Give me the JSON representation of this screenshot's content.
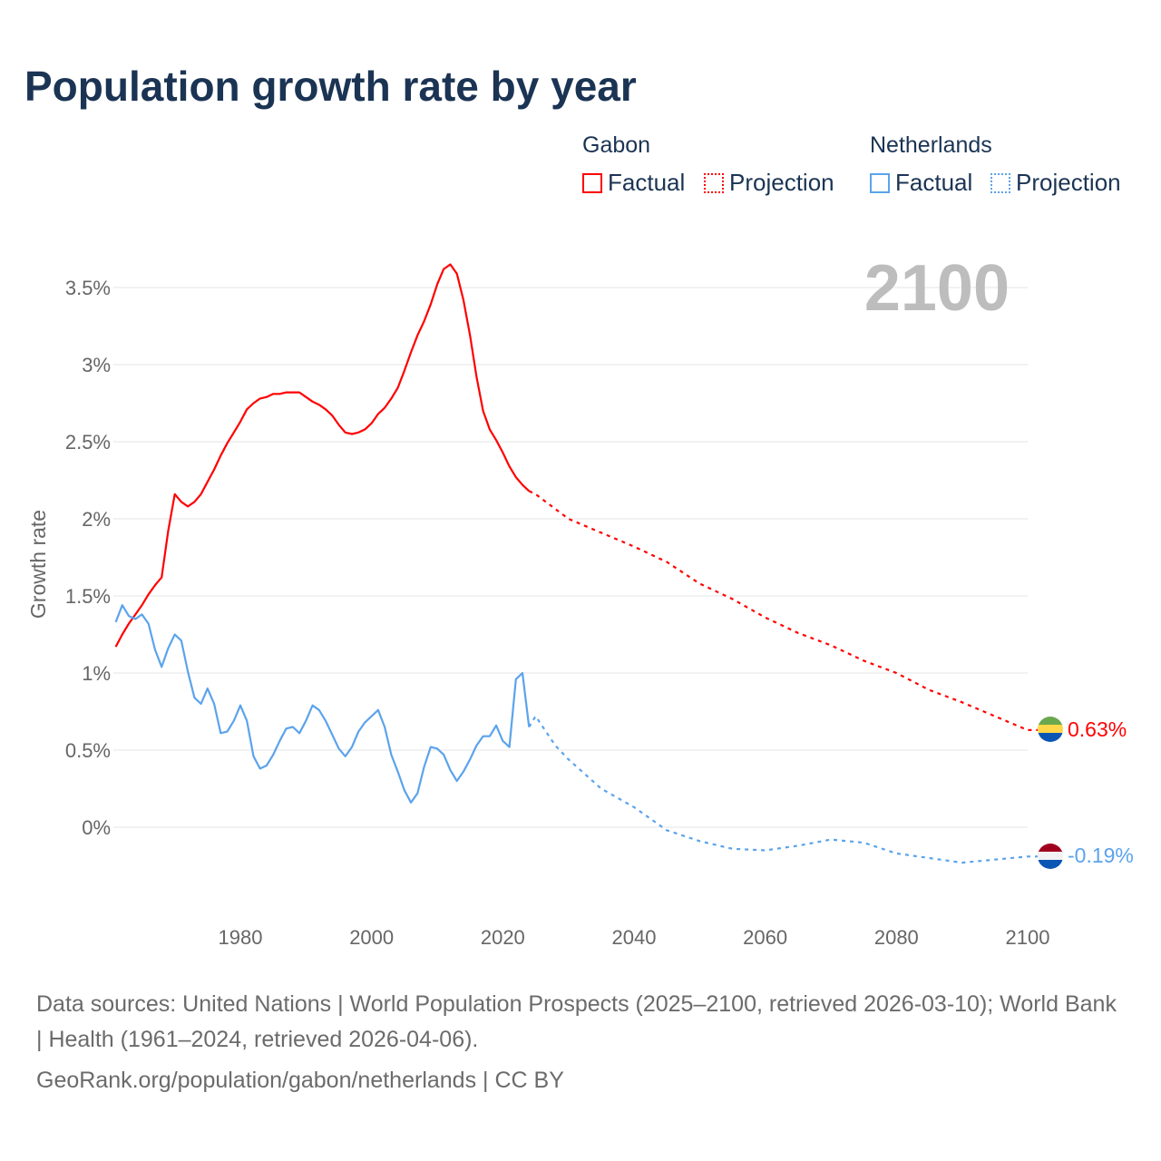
{
  "title": "Population growth rate by year",
  "legend": {
    "groups": [
      {
        "name": "Gabon",
        "factual": "Factual",
        "projection": "Projection",
        "color": "#ff0000"
      },
      {
        "name": "Netherlands",
        "factual": "Factual",
        "projection": "Projection",
        "color": "#5ba3ec"
      }
    ]
  },
  "footer": {
    "sources": "Data sources: United Nations | World Population Prospects (2025–2100, retrieved 2026-03-10); World Bank | Health (1961–2024, retrieved 2026-04-06).",
    "credit": "GeoRank.org/population/gabon/netherlands | CC BY"
  },
  "chart_data": {
    "type": "line",
    "title": "Population growth rate by year",
    "ylabel": "Growth rate",
    "xlabel": "",
    "year_label": "2100",
    "xlim": [
      1961,
      2100
    ],
    "ylim": [
      -0.5,
      3.8
    ],
    "x_ticks": [
      1980,
      2000,
      2020,
      2040,
      2060,
      2080,
      2100
    ],
    "y_ticks": [
      {
        "v": 0,
        "l": "0%"
      },
      {
        "v": 0.5,
        "l": "0.5%"
      },
      {
        "v": 1,
        "l": "1%"
      },
      {
        "v": 1.5,
        "l": "1.5%"
      },
      {
        "v": 2,
        "l": "2%"
      },
      {
        "v": 2.5,
        "l": "2.5%"
      },
      {
        "v": 3,
        "l": "3%"
      },
      {
        "v": 3.5,
        "l": "3.5%"
      }
    ],
    "grid": true,
    "series": [
      {
        "name": "Gabon",
        "color": "#ff0000",
        "end_label": "0.63%",
        "factual": {
          "start": 1961,
          "values": [
            1.17,
            1.25,
            1.32,
            1.38,
            1.44,
            1.51,
            1.57,
            1.62,
            1.92,
            2.16,
            2.11,
            2.08,
            2.11,
            2.16,
            2.24,
            2.32,
            2.41,
            2.49,
            2.56,
            2.63,
            2.71,
            2.75,
            2.78,
            2.79,
            2.81,
            2.81,
            2.82,
            2.82,
            2.82,
            2.79,
            2.76,
            2.74,
            2.71,
            2.67,
            2.61,
            2.56,
            2.55,
            2.56,
            2.58,
            2.62,
            2.68,
            2.72,
            2.78,
            2.85,
            2.96,
            3.08,
            3.19,
            3.28,
            3.39,
            3.52,
            3.62,
            3.65,
            3.59,
            3.42,
            3.19,
            2.92,
            2.7,
            2.58,
            2.51,
            2.43,
            2.34,
            2.27,
            2.22,
            2.18
          ]
        },
        "projection": {
          "x": [
            2024,
            2025,
            2030,
            2035,
            2040,
            2045,
            2050,
            2055,
            2060,
            2065,
            2070,
            2075,
            2080,
            2085,
            2090,
            2095,
            2100
          ],
          "values": [
            2.18,
            2.16,
            2.0,
            1.91,
            1.82,
            1.72,
            1.58,
            1.48,
            1.36,
            1.26,
            1.18,
            1.08,
            1.0,
            0.89,
            0.81,
            0.72,
            0.63
          ]
        }
      },
      {
        "name": "Netherlands",
        "color": "#5ba3ec",
        "end_label": "-0.19%",
        "factual": {
          "start": 1961,
          "values": [
            1.33,
            1.44,
            1.37,
            1.35,
            1.38,
            1.32,
            1.15,
            1.04,
            1.16,
            1.25,
            1.21,
            1.01,
            0.84,
            0.8,
            0.9,
            0.8,
            0.61,
            0.62,
            0.69,
            0.79,
            0.69,
            0.46,
            0.38,
            0.4,
            0.47,
            0.56,
            0.64,
            0.65,
            0.61,
            0.69,
            0.79,
            0.76,
            0.69,
            0.6,
            0.51,
            0.46,
            0.52,
            0.62,
            0.68,
            0.72,
            0.76,
            0.65,
            0.47,
            0.36,
            0.24,
            0.16,
            0.22,
            0.39,
            0.52,
            0.51,
            0.47,
            0.37,
            0.3,
            0.36,
            0.44,
            0.53,
            0.59,
            0.59,
            0.66,
            0.56,
            0.52,
            0.96,
            1.0,
            0.65
          ]
        },
        "projection": {
          "x": [
            2024,
            2025,
            2028,
            2030,
            2035,
            2040,
            2045,
            2050,
            2055,
            2060,
            2065,
            2070,
            2075,
            2080,
            2085,
            2090,
            2095,
            2100
          ],
          "values": [
            0.65,
            0.72,
            0.53,
            0.44,
            0.25,
            0.13,
            -0.02,
            -0.09,
            -0.14,
            -0.15,
            -0.12,
            -0.08,
            -0.1,
            -0.17,
            -0.2,
            -0.23,
            -0.21,
            -0.19
          ]
        }
      }
    ]
  }
}
